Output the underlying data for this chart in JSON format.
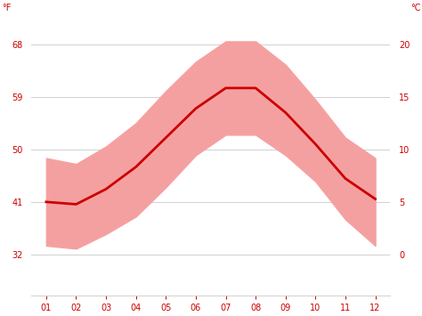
{
  "months": [
    1,
    2,
    3,
    4,
    5,
    6,
    7,
    8,
    9,
    10,
    11,
    12
  ],
  "month_labels": [
    "01",
    "02",
    "03",
    "04",
    "05",
    "06",
    "07",
    "08",
    "09",
    "10",
    "11",
    "12"
  ],
  "avg_temp_f": [
    41.0,
    40.6,
    43.2,
    47.0,
    52.0,
    57.0,
    60.5,
    60.5,
    56.3,
    50.9,
    45.0,
    41.5
  ],
  "max_temp_f": [
    48.5,
    47.5,
    50.5,
    54.5,
    60.0,
    65.0,
    68.5,
    68.5,
    64.5,
    58.5,
    52.0,
    48.5
  ],
  "min_temp_f": [
    33.5,
    33.0,
    35.5,
    38.5,
    43.5,
    49.0,
    52.5,
    52.5,
    49.0,
    44.5,
    38.0,
    33.5
  ],
  "line_color": "#cc0000",
  "fill_color": "#f5a0a0",
  "background_color": "#ffffff",
  "grid_color": "#d0d0d0",
  "yticks_f": [
    32,
    41,
    50,
    59,
    68
  ],
  "yticks_c": [
    0,
    5,
    10,
    15,
    20
  ],
  "ylim_f": [
    25,
    73
  ],
  "ylabel_left": "°F",
  "ylabel_right": "°C",
  "axis_label_color": "#cc0000",
  "tick_label_color": "#cc0000",
  "line_width": 2.0,
  "figure_width": 4.74,
  "figure_height": 3.55,
  "dpi": 100
}
